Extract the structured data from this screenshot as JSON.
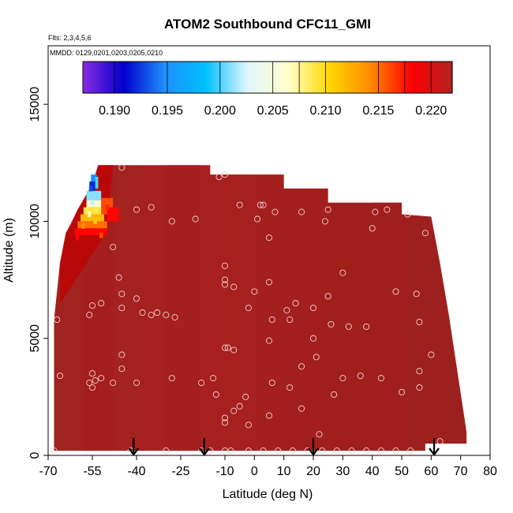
{
  "chart_data": {
    "type": "heatmap",
    "title": "ATOM2 Southbound CFC11_GMI",
    "flights_note": "Flts: 2,3,4,5,6",
    "dates_note": "MMDD: 0129,0201,0203,0205,0210",
    "xlabel": "Latitude (deg N)",
    "ylabel": "Altitude (m)",
    "xlim": [
      -70,
      80
    ],
    "ylim": [
      0,
      17500
    ],
    "x_ticks": [
      -70,
      -55,
      -40,
      -25,
      -10,
      0,
      10,
      20,
      30,
      40,
      50,
      60,
      70,
      80
    ],
    "x_tick_labels": [
      "-70",
      "-55",
      "-40",
      "-25",
      "-10",
      "0",
      "10",
      "20",
      "30",
      "40",
      "50",
      "60",
      "70",
      "80"
    ],
    "y_ticks": [
      0,
      5000,
      10000,
      15000
    ],
    "y_tick_labels": [
      "0",
      "5000",
      "10000",
      "15000"
    ],
    "colorbar": {
      "range": [
        0.187,
        0.222
      ],
      "ticks": [
        0.19,
        0.195,
        0.2,
        0.205,
        0.21,
        0.215,
        0.22
      ],
      "tick_labels": [
        "0.190",
        "0.195",
        "0.200",
        "0.205",
        "0.210",
        "0.215",
        "0.220"
      ],
      "colors": [
        "#8a2be2",
        "#0000cd",
        "#1e90ff",
        "#00bfff",
        "#e0f6ff",
        "#ffffcc",
        "#ffd700",
        "#ff8c00",
        "#ff0000",
        "#b22222"
      ]
    },
    "field_outline": [
      [
        -68,
        200
      ],
      [
        -68,
        5800
      ],
      [
        -66,
        8200
      ],
      [
        -64,
        9500
      ],
      [
        -62,
        9900
      ],
      [
        -60,
        10500
      ],
      [
        -58,
        10900
      ],
      [
        -55,
        11600
      ],
      [
        -53,
        12400
      ],
      [
        -15,
        12400
      ],
      [
        -15,
        12000
      ],
      [
        10,
        12000
      ],
      [
        10,
        11400
      ],
      [
        25,
        11400
      ],
      [
        25,
        10800
      ],
      [
        50,
        10800
      ],
      [
        50,
        10300
      ],
      [
        60,
        10200
      ],
      [
        63,
        8200
      ],
      [
        66,
        6000
      ],
      [
        69,
        3500
      ],
      [
        72,
        1000
      ],
      [
        72,
        500
      ],
      [
        58,
        500
      ],
      [
        58,
        200
      ]
    ],
    "anomaly": [
      {
        "lat": -55.5,
        "alt": 11400,
        "value": 0.193
      },
      {
        "lat": -55,
        "alt": 10800,
        "value": 0.202
      },
      {
        "lat": -56,
        "alt": 10300,
        "value": 0.207
      },
      {
        "lat": -54,
        "alt": 10000,
        "value": 0.211
      },
      {
        "lat": -58,
        "alt": 9800,
        "value": 0.214
      },
      {
        "lat": -52,
        "alt": 9400,
        "value": 0.216
      },
      {
        "lat": -60,
        "alt": 9300,
        "value": 0.218
      },
      {
        "lat": -50,
        "alt": 10600,
        "value": 0.217
      }
    ],
    "samples": [
      [
        -68,
        200
      ],
      [
        -66,
        3400
      ],
      [
        -67,
        5800
      ],
      [
        -56,
        3100
      ],
      [
        -55,
        2900
      ],
      [
        -54,
        3200
      ],
      [
        -52,
        3300
      ],
      [
        -55,
        3500
      ],
      [
        -48,
        3100
      ],
      [
        -45,
        3700
      ],
      [
        -45,
        4300
      ],
      [
        -56,
        6000
      ],
      [
        -55,
        6400
      ],
      [
        -52,
        6500
      ],
      [
        -45,
        6300
      ],
      [
        -45,
        6900
      ],
      [
        -46,
        7600
      ],
      [
        -40,
        6700
      ],
      [
        -38,
        6100
      ],
      [
        -35,
        6000
      ],
      [
        -33,
        6100
      ],
      [
        -30,
        6000
      ],
      [
        -27,
        5900
      ],
      [
        -48,
        8900
      ],
      [
        -45,
        12300
      ],
      [
        -40,
        10500
      ],
      [
        -35,
        10600
      ],
      [
        -28,
        10000
      ],
      [
        -20,
        10100
      ],
      [
        -10,
        12000
      ],
      [
        -12,
        11900
      ],
      [
        -10,
        8100
      ],
      [
        -10,
        7500
      ],
      [
        -10,
        7300
      ],
      [
        -7,
        7200
      ],
      [
        -10,
        4600
      ],
      [
        -9,
        4600
      ],
      [
        -7,
        4500
      ],
      [
        -5,
        10700
      ],
      [
        -2,
        6300
      ],
      [
        0,
        7000
      ],
      [
        1,
        10100
      ],
      [
        2,
        10700
      ],
      [
        3,
        10700
      ],
      [
        5,
        9300
      ],
      [
        5,
        7400
      ],
      [
        5,
        4900
      ],
      [
        6,
        5800
      ],
      [
        6,
        3100
      ],
      [
        5,
        1700
      ],
      [
        7,
        10400
      ],
      [
        11,
        6200
      ],
      [
        12,
        5800
      ],
      [
        12,
        2900
      ],
      [
        14,
        6500
      ],
      [
        16,
        3800
      ],
      [
        16,
        2000
      ],
      [
        16,
        10400
      ],
      [
        20,
        5000
      ],
      [
        20,
        6300
      ],
      [
        21,
        4200
      ],
      [
        24,
        10000
      ],
      [
        25,
        6800
      ],
      [
        25,
        10500
      ],
      [
        26,
        5600
      ],
      [
        27,
        2600
      ],
      [
        30,
        7800
      ],
      [
        30,
        3300
      ],
      [
        32,
        5500
      ],
      [
        36,
        3400
      ],
      [
        38,
        5500
      ],
      [
        40,
        9700
      ],
      [
        41,
        10400
      ],
      [
        43,
        3300
      ],
      [
        45,
        10500
      ],
      [
        48,
        7000
      ],
      [
        50,
        2700
      ],
      [
        52,
        10300
      ],
      [
        55,
        6900
      ],
      [
        56,
        3600
      ],
      [
        56,
        5700
      ],
      [
        56,
        2900
      ],
      [
        58,
        9500
      ],
      [
        60,
        4300
      ],
      [
        63,
        600
      ],
      [
        -10,
        1400
      ],
      [
        -10,
        1600
      ],
      [
        -7,
        1900
      ],
      [
        -5,
        2100
      ],
      [
        -3,
        2500
      ],
      [
        -2,
        1300
      ],
      [
        -14,
        3300
      ],
      [
        -18,
        3100
      ],
      [
        -13,
        2600
      ],
      [
        -18,
        200
      ],
      [
        -28,
        3300
      ],
      [
        -40,
        3100
      ],
      [
        -42,
        200
      ],
      [
        -30,
        200
      ],
      [
        -15,
        200
      ],
      [
        -10,
        200
      ],
      [
        -8,
        200
      ],
      [
        -2,
        200
      ],
      [
        3,
        200
      ],
      [
        8,
        200
      ],
      [
        13,
        200
      ],
      [
        18,
        200
      ],
      [
        23,
        200
      ],
      [
        28,
        200
      ],
      [
        33,
        200
      ],
      [
        38,
        200
      ],
      [
        43,
        200
      ],
      [
        48,
        200
      ],
      [
        53,
        200
      ],
      [
        22,
        900
      ]
    ],
    "arrows_lat": [
      -41,
      -17,
      20,
      61
    ]
  }
}
